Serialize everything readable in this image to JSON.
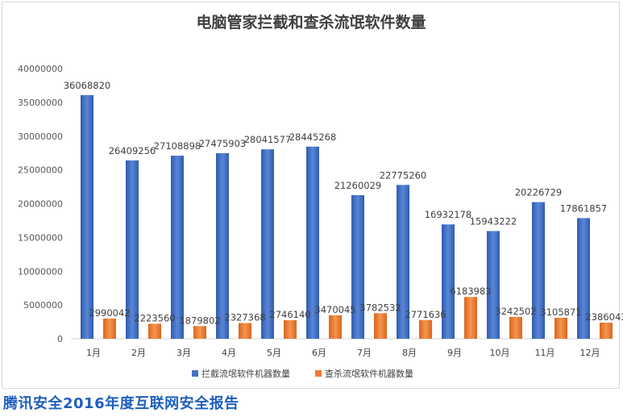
{
  "chart_data": {
    "type": "bar",
    "title": "电脑管家拦截和查杀流氓软件数量",
    "categories": [
      "1月",
      "2月",
      "3月",
      "4月",
      "5月",
      "6月",
      "7月",
      "8月",
      "9月",
      "10月",
      "11月",
      "12月"
    ],
    "series": [
      {
        "name": "拦截流氓软件机器数量",
        "color": "#4472c4",
        "values": [
          36068820,
          26409256,
          27108898,
          27475903,
          28041577,
          28445268,
          21260029,
          22775260,
          16932178,
          15943222,
          20226729,
          17861857
        ]
      },
      {
        "name": "查杀流氓软件机器数量",
        "color": "#ed7d31",
        "values": [
          2990042,
          2223560,
          1879802,
          2327368,
          2746140,
          3470045,
          3782532,
          2771636,
          6183983,
          3242502,
          3105871,
          2386043
        ]
      }
    ],
    "ylim": [
      0,
      40000000
    ],
    "yticks": [
      "0",
      "5000000",
      "10000000",
      "15000000",
      "20000000",
      "25000000",
      "30000000",
      "35000000",
      "40000000"
    ],
    "legend_position": "bottom",
    "grid": false
  },
  "footer": {
    "text": "腾讯安全2016年度互联网安全报告"
  }
}
